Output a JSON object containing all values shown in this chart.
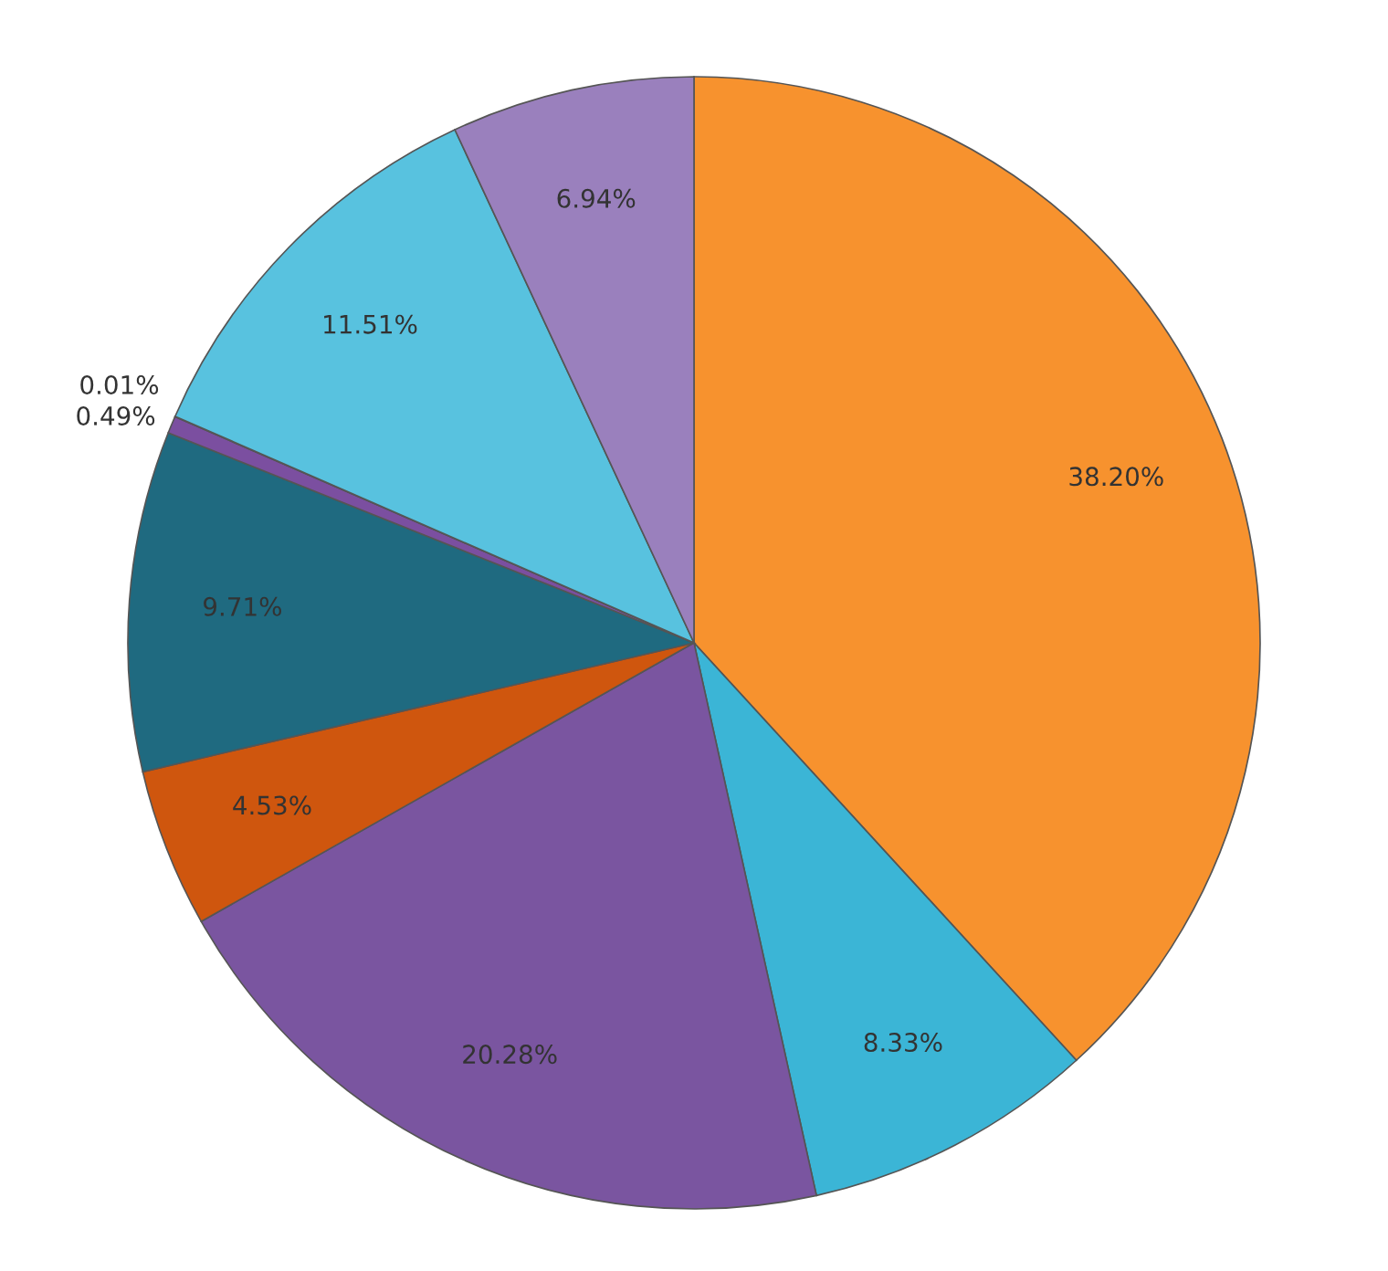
{
  "chart_data": {
    "type": "pie",
    "categories": [
      null,
      null,
      null,
      null,
      null,
      null,
      null,
      null,
      null
    ],
    "values": [
      38.2,
      8.33,
      20.28,
      4.53,
      9.71,
      0.49,
      0.01,
      11.51,
      6.94
    ],
    "value_labels": [
      "38.20%",
      "8.33%",
      "20.28%",
      "4.53%",
      "9.71%",
      "0.49%",
      "0.01%",
      "11.51%",
      "6.94%"
    ],
    "colors": [
      "#f7922e",
      "#3bb5d6",
      "#7a55a0",
      "#cf560e",
      "#1f6a80",
      "#7b4fa0",
      "#5ec8e0",
      "#58c2df",
      "#9a80bd"
    ]
  }
}
